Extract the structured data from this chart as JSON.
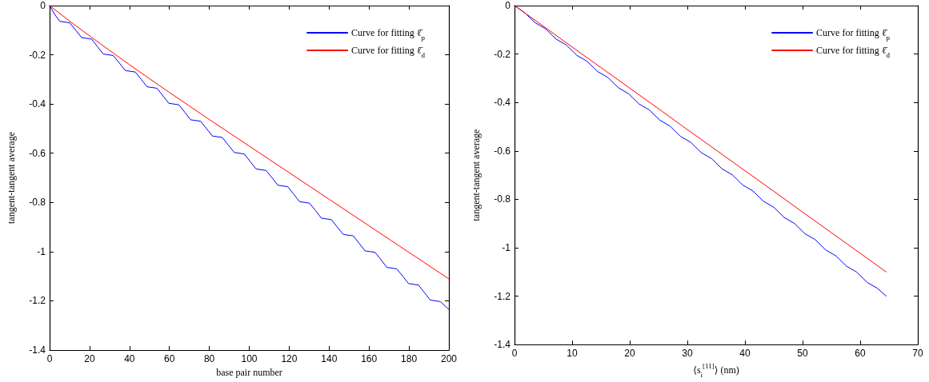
{
  "chart_data": [
    {
      "type": "line",
      "xlabel": "base pair number",
      "ylabel": "tangent-tangent average",
      "xlim": [
        0,
        200
      ],
      "xticks": [
        0,
        20,
        40,
        60,
        80,
        100,
        120,
        140,
        160,
        180,
        200
      ],
      "ylim": [
        -1.4,
        0
      ],
      "yticks": [
        -1.4,
        -1.2,
        -1,
        -0.8,
        -0.6,
        -0.4,
        -0.2,
        0
      ],
      "grid": false,
      "legend": "top right",
      "series": [
        {
          "name": "Curve for fitting ℓ̄$_{p}$",
          "color": "#0000ff",
          "x": [
            0,
            2.5,
            5.1,
            10.1,
            13.1,
            16.0,
            21.0,
            24.0,
            26.9,
            31.9,
            34.9,
            37.9,
            42.9,
            45.9,
            48.8,
            53.8,
            56.8,
            59.7,
            64.7,
            67.7,
            70.6,
            75.6,
            78.6,
            81.5,
            86.5,
            89.5,
            92.5,
            97.5,
            100.4,
            103.4,
            108.4,
            111.4,
            114.3,
            119.3,
            122.3,
            125.2,
            130.2,
            133.2,
            136.1,
            141.1,
            144.1,
            147.1,
            152.1,
            155.1,
            158.0,
            163.0,
            166.0,
            168.9,
            173.9,
            176.9,
            179.8,
            184.8,
            187.8,
            190.7,
            195.7,
            200
          ],
          "values": [
            0,
            -0.035,
            -0.064,
            -0.07,
            -0.1,
            -0.13,
            -0.136,
            -0.167,
            -0.197,
            -0.203,
            -0.233,
            -0.264,
            -0.27,
            -0.3,
            -0.33,
            -0.336,
            -0.367,
            -0.397,
            -0.403,
            -0.433,
            -0.464,
            -0.47,
            -0.5,
            -0.53,
            -0.536,
            -0.567,
            -0.597,
            -0.603,
            -0.633,
            -0.664,
            -0.67,
            -0.7,
            -0.73,
            -0.736,
            -0.767,
            -0.797,
            -0.803,
            -0.833,
            -0.864,
            -0.87,
            -0.9,
            -0.93,
            -0.936,
            -0.967,
            -0.997,
            -1.003,
            -1.033,
            -1.064,
            -1.07,
            -1.1,
            -1.13,
            -1.136,
            -1.167,
            -1.197,
            -1.203,
            -1.235
          ]
        },
        {
          "name": "Curve for fitting ℓ̄$_{d}$",
          "color": "#ff0000",
          "x": [
            0,
            10,
            20,
            30,
            40,
            50,
            60,
            70,
            80,
            90,
            100,
            110,
            120,
            130,
            140,
            150,
            160,
            170,
            180,
            190,
            200
          ],
          "values": [
            0,
            -0.063,
            -0.123,
            -0.182,
            -0.24,
            -0.297,
            -0.353,
            -0.408,
            -0.463,
            -0.517,
            -0.571,
            -0.625,
            -0.679,
            -0.733,
            -0.787,
            -0.841,
            -0.895,
            -0.949,
            -1.003,
            -1.057,
            -1.111
          ]
        }
      ]
    },
    {
      "type": "line",
      "xlabel": "⟨s$_{i}$$^{[11]}$⟩ (nm)",
      "ylabel": "tangent-tangent average",
      "xlim": [
        0,
        70
      ],
      "xticks": [
        0,
        10,
        20,
        30,
        40,
        50,
        60,
        70
      ],
      "ylim": [
        -1.4,
        0
      ],
      "yticks": [
        -1.4,
        -1.2,
        -1,
        -0.8,
        -0.6,
        -0.4,
        -0.2,
        0
      ],
      "grid": false,
      "legend": "top right",
      "series": [
        {
          "name": "Curve for fitting ℓ̄$_{p}$",
          "color": "#0000ff",
          "x": [
            0,
            1.8,
            3.6,
            5.4,
            7.2,
            9.0,
            10.8,
            12.6,
            14.4,
            16.2,
            18.0,
            19.8,
            21.6,
            23.4,
            25.2,
            27.0,
            28.8,
            30.6,
            32.4,
            34.2,
            36.0,
            37.8,
            39.6,
            41.4,
            43.2,
            45.0,
            46.8,
            48.6,
            50.4,
            52.2,
            54.0,
            55.8,
            57.6,
            59.4,
            61.2,
            63.0,
            64.5
          ],
          "values": [
            0,
            -0.03,
            -0.071,
            -0.096,
            -0.138,
            -0.163,
            -0.205,
            -0.23,
            -0.272,
            -0.297,
            -0.339,
            -0.364,
            -0.406,
            -0.431,
            -0.473,
            -0.498,
            -0.54,
            -0.565,
            -0.607,
            -0.632,
            -0.674,
            -0.699,
            -0.741,
            -0.766,
            -0.808,
            -0.833,
            -0.875,
            -0.9,
            -0.942,
            -0.967,
            -1.009,
            -1.034,
            -1.076,
            -1.101,
            -1.143,
            -1.168,
            -1.2
          ]
        },
        {
          "name": "Curve for fitting ℓ̄$_{d}$",
          "color": "#ff0000",
          "x": [
            0,
            5,
            10,
            15,
            20,
            25,
            30,
            35,
            40,
            45,
            50,
            55,
            60,
            64.5
          ],
          "values": [
            0,
            -0.085,
            -0.171,
            -0.256,
            -0.341,
            -0.426,
            -0.512,
            -0.597,
            -0.682,
            -0.767,
            -0.853,
            -0.938,
            -1.023,
            -1.1
          ]
        }
      ]
    }
  ]
}
